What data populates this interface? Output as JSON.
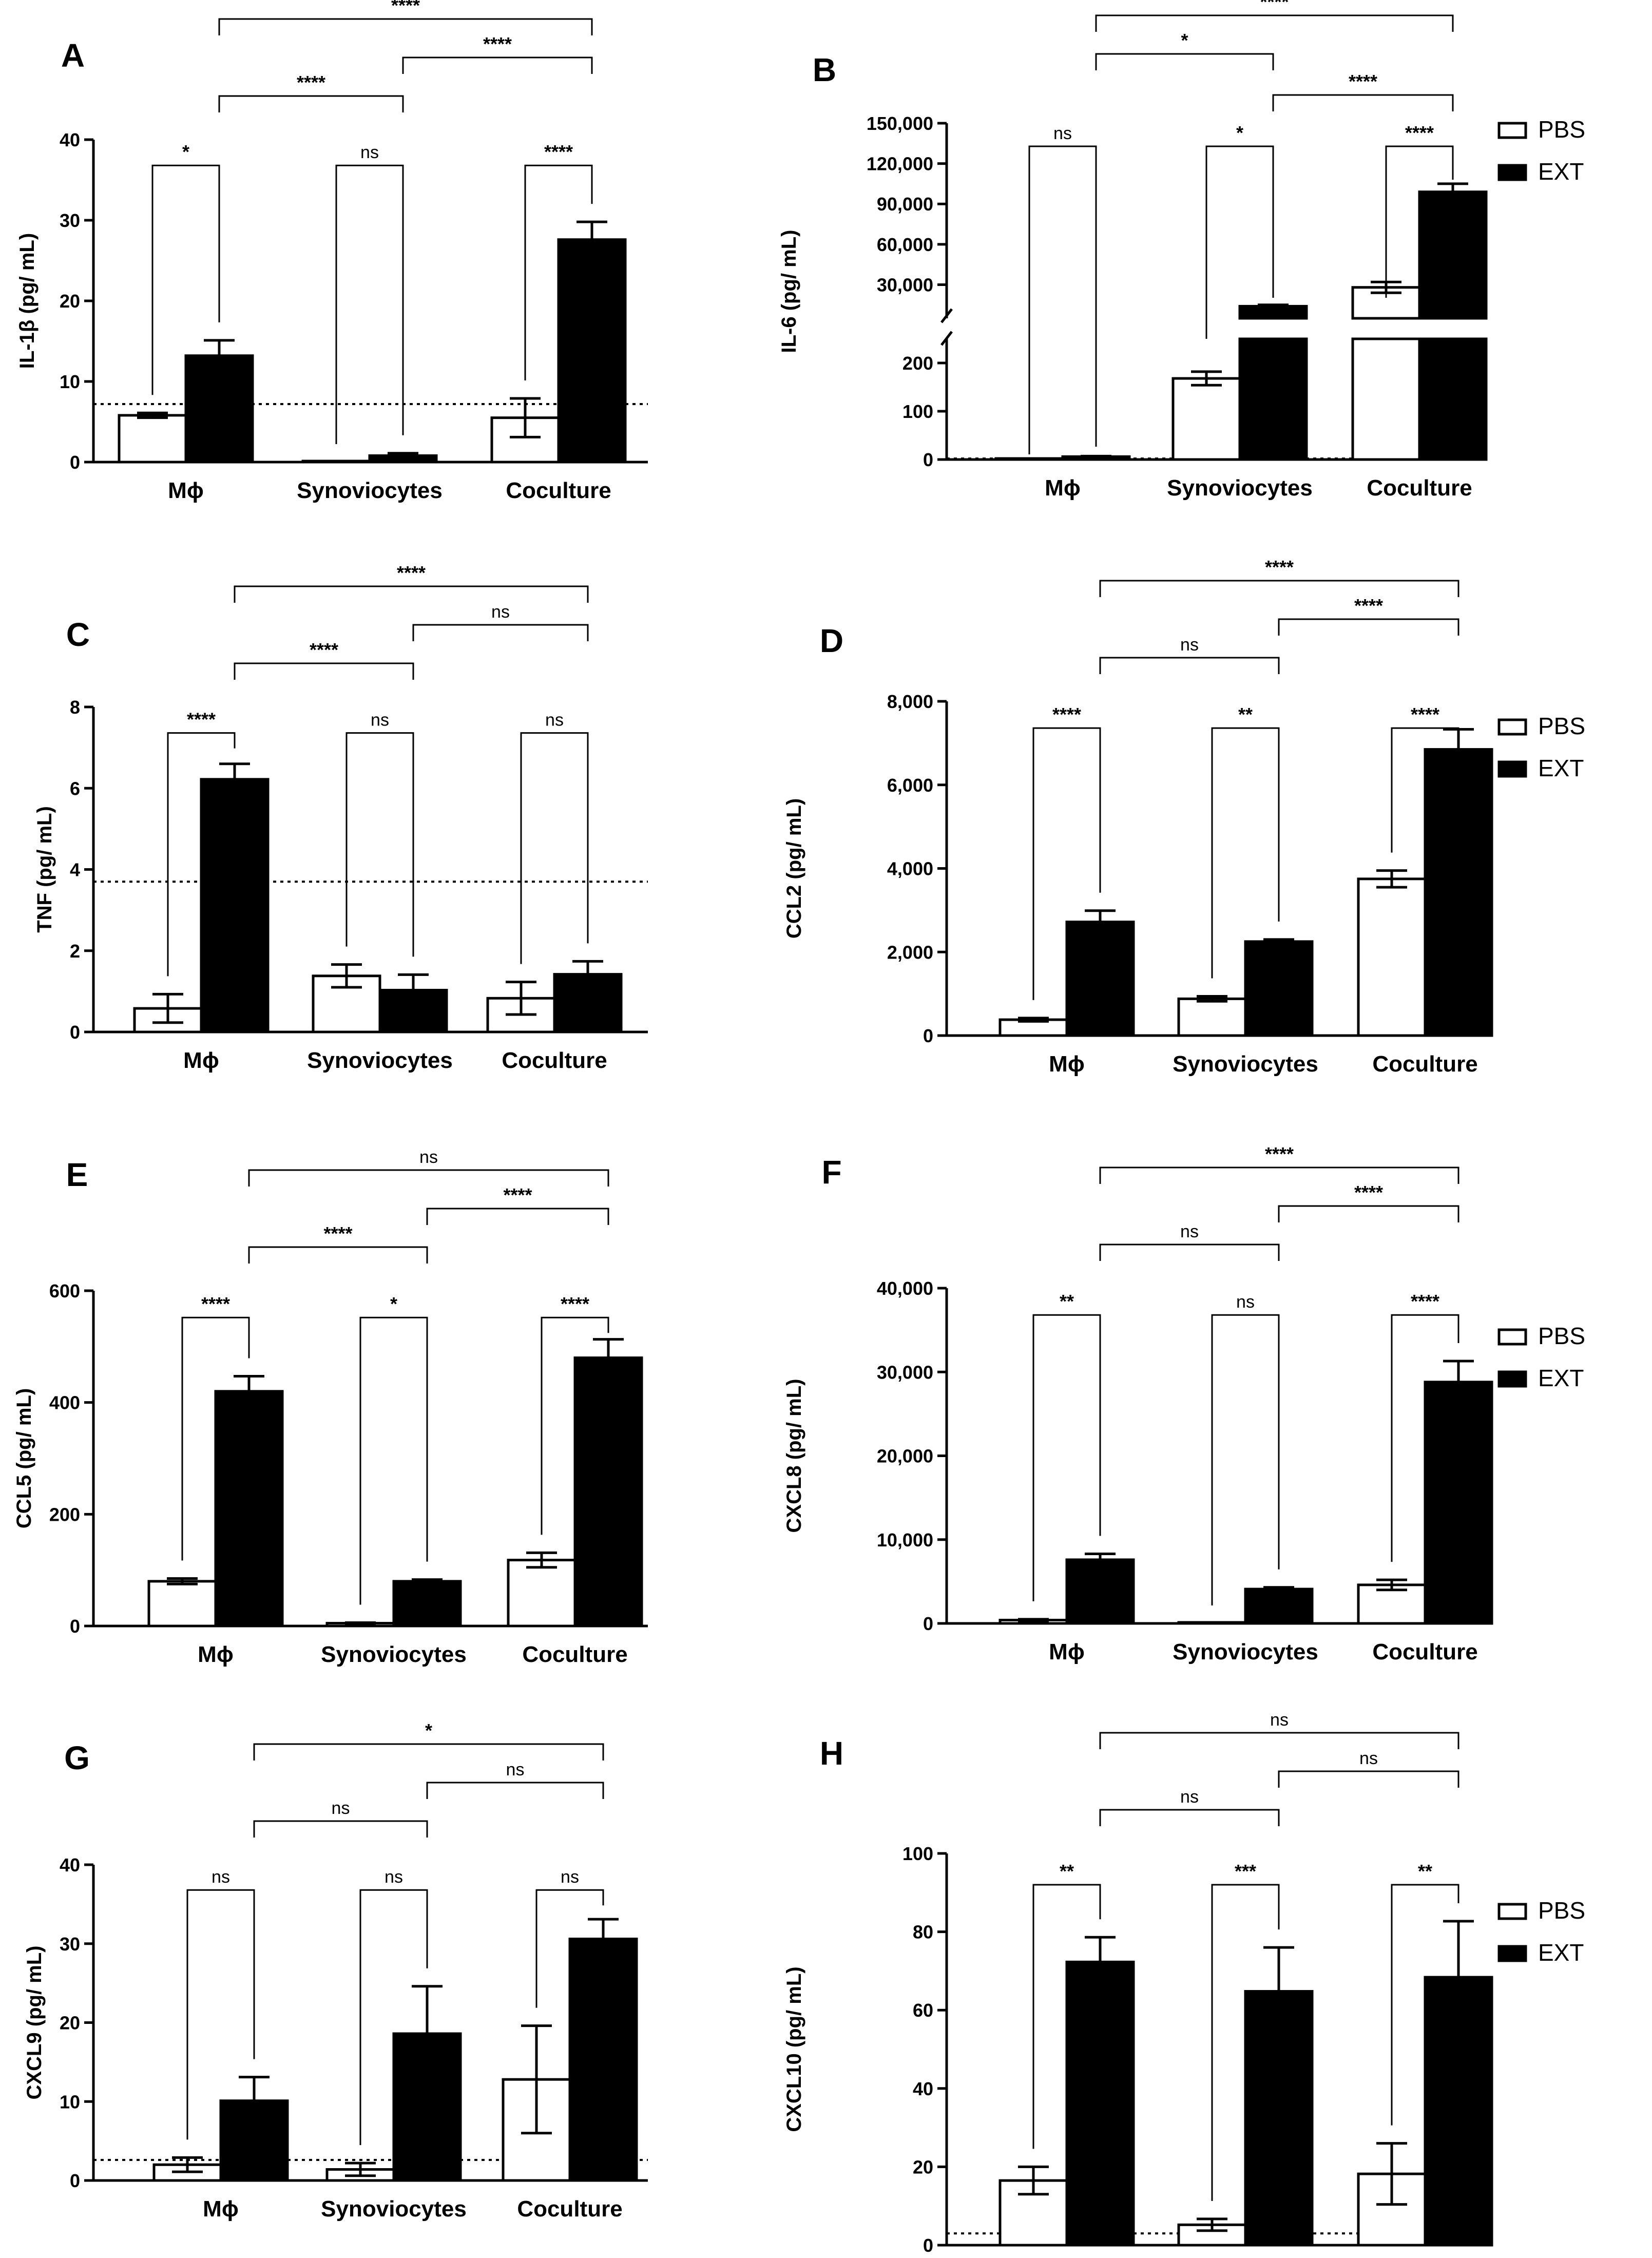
{
  "legend": {
    "items": [
      {
        "label": "PBS",
        "color": "#ffffff"
      },
      {
        "label": "EXT",
        "color": "#000000"
      }
    ]
  },
  "chart_data": [
    {
      "panel": "A",
      "type": "bar",
      "ylabel": "IL-1β (pg/ mL)",
      "categories": [
        "Mϕ",
        "Synoviocytes",
        "Coculture"
      ],
      "ylim": [
        0,
        40
      ],
      "yticks": [
        0,
        10,
        20,
        30,
        40
      ],
      "ytick_labels": [
        "0",
        "10",
        "20",
        "30",
        "40"
      ],
      "series": [
        {
          "name": "PBS",
          "values": [
            5.8,
            0,
            5.5
          ],
          "errors": [
            0.3,
            0,
            2.4
          ]
        },
        {
          "name": "EXT",
          "values": [
            13.2,
            0.8,
            27.6
          ],
          "errors": [
            1.9,
            0.3,
            2.2
          ]
        }
      ],
      "detection_limit": 7.2,
      "brackets_within": [
        "*",
        "ns",
        "****"
      ],
      "brackets_between": [
        {
          "from": 0,
          "to": 1,
          "label": "****"
        },
        {
          "from": 1,
          "to": 2,
          "label": "****"
        },
        {
          "from": 0,
          "to": 2,
          "label": "****"
        }
      ]
    },
    {
      "panel": "B",
      "type": "bar",
      "ylabel": "IL-6 (pg/ mL)",
      "categories": [
        "Mϕ",
        "Synoviocytes",
        "Coculture"
      ],
      "broken_axis": true,
      "lower_ylim": [
        0,
        250
      ],
      "lower_yticks": [
        0,
        100,
        200
      ],
      "lower_ytick_labels": [
        "0",
        "100",
        "200"
      ],
      "upper_ylim": [
        5000,
        150000
      ],
      "upper_yticks": [
        30000,
        60000,
        90000,
        120000,
        150000
      ],
      "upper_ytick_labels": [
        "30,000",
        "60,000",
        "90,000",
        "120,000",
        "150,000"
      ],
      "series": [
        {
          "name": "PBS",
          "values": [
            2,
            168,
            28000
          ],
          "errors": [
            0,
            14,
            4000
          ]
        },
        {
          "name": "EXT",
          "values": [
            6,
            14000,
            99000
          ],
          "errors": [
            1,
            1000,
            6000
          ]
        }
      ],
      "detection_limit": 2,
      "brackets_within": [
        "ns",
        "*",
        "****"
      ],
      "brackets_between": [
        {
          "from": 0,
          "to": 1,
          "label": "*"
        },
        {
          "from": 1,
          "to": 2,
          "label": "****"
        },
        {
          "from": 0,
          "to": 2,
          "label": "****"
        }
      ]
    },
    {
      "panel": "C",
      "type": "bar",
      "ylabel": "TNF (pg/ mL)",
      "categories": [
        "Mϕ",
        "Synoviocytes",
        "Coculture"
      ],
      "ylim": [
        0,
        8
      ],
      "yticks": [
        0,
        2,
        4,
        6,
        8
      ],
      "ytick_labels": [
        "0",
        "2",
        "4",
        "6",
        "8"
      ],
      "series": [
        {
          "name": "PBS",
          "values": [
            0.58,
            1.38,
            0.83
          ],
          "errors": [
            0.35,
            0.28,
            0.4
          ]
        },
        {
          "name": "EXT",
          "values": [
            6.22,
            1.03,
            1.42
          ],
          "errors": [
            0.38,
            0.38,
            0.32
          ]
        }
      ],
      "detection_limit": 3.7,
      "brackets_within": [
        "****",
        "ns",
        "ns"
      ],
      "brackets_between": [
        {
          "from": 0,
          "to": 1,
          "label": "****"
        },
        {
          "from": 1,
          "to": 2,
          "label": "ns"
        },
        {
          "from": 0,
          "to": 2,
          "label": "****"
        }
      ]
    },
    {
      "panel": "D",
      "type": "bar",
      "ylabel": "CCL2 (pg/ mL)",
      "categories": [
        "Mϕ",
        "Synoviocytes",
        "Coculture"
      ],
      "ylim": [
        0,
        8000
      ],
      "yticks": [
        0,
        2000,
        4000,
        6000,
        8000
      ],
      "ytick_labels": [
        "0",
        "2,000",
        "4,000",
        "6,000",
        "8,000"
      ],
      "series": [
        {
          "name": "PBS",
          "values": [
            380,
            880,
            3750
          ],
          "errors": [
            40,
            60,
            200
          ]
        },
        {
          "name": "EXT",
          "values": [
            2720,
            2250,
            6850
          ],
          "errors": [
            270,
            50,
            480
          ]
        }
      ],
      "brackets_within": [
        "****",
        "**",
        "****"
      ],
      "brackets_between": [
        {
          "from": 0,
          "to": 1,
          "label": "ns"
        },
        {
          "from": 1,
          "to": 2,
          "label": "****"
        },
        {
          "from": 0,
          "to": 2,
          "label": "****"
        }
      ]
    },
    {
      "panel": "E",
      "type": "bar",
      "ylabel": "CCL5 (pg/ mL)",
      "categories": [
        "Mϕ",
        "Synoviocytes",
        "Coculture"
      ],
      "ylim": [
        0,
        600
      ],
      "yticks": [
        0,
        200,
        400,
        600
      ],
      "ytick_labels": [
        "0",
        "200",
        "400",
        "600"
      ],
      "series": [
        {
          "name": "PBS",
          "values": [
            80,
            5,
            118
          ],
          "errors": [
            5,
            1,
            13
          ]
        },
        {
          "name": "EXT",
          "values": [
            420,
            80,
            480
          ],
          "errors": [
            27,
            3,
            33
          ]
        }
      ],
      "brackets_within": [
        "****",
        "*",
        "****"
      ],
      "brackets_between": [
        {
          "from": 0,
          "to": 1,
          "label": "****"
        },
        {
          "from": 1,
          "to": 2,
          "label": "****"
        },
        {
          "from": 0,
          "to": 2,
          "label": "ns"
        }
      ]
    },
    {
      "panel": "F",
      "type": "bar",
      "ylabel": "CXCL8 (pg/ mL)",
      "categories": [
        "Mϕ",
        "Synoviocytes",
        "Coculture"
      ],
      "ylim": [
        0,
        40000
      ],
      "yticks": [
        0,
        10000,
        20000,
        30000,
        40000
      ],
      "ytick_labels": [
        "0",
        "10,000",
        "20,000",
        "30,000",
        "40,000"
      ],
      "series": [
        {
          "name": "PBS",
          "values": [
            400,
            0,
            4600
          ],
          "errors": [
            100,
            0,
            600
          ]
        },
        {
          "name": "EXT",
          "values": [
            7600,
            4100,
            28800
          ],
          "errors": [
            700,
            200,
            2500
          ]
        }
      ],
      "brackets_within": [
        "**",
        "ns",
        "****"
      ],
      "brackets_between": [
        {
          "from": 0,
          "to": 1,
          "label": "ns"
        },
        {
          "from": 1,
          "to": 2,
          "label": "****"
        },
        {
          "from": 0,
          "to": 2,
          "label": "****"
        }
      ]
    },
    {
      "panel": "G",
      "type": "bar",
      "ylabel": "CXCL9 (pg/ mL)",
      "categories": [
        "Mϕ",
        "Synoviocytes",
        "Coculture"
      ],
      "ylim": [
        0,
        40
      ],
      "yticks": [
        0,
        10,
        20,
        30,
        40
      ],
      "ytick_labels": [
        "0",
        "10",
        "20",
        "30",
        "40"
      ],
      "series": [
        {
          "name": "PBS",
          "values": [
            2.0,
            1.4,
            12.8
          ],
          "errors": [
            0.9,
            0.8,
            6.8
          ]
        },
        {
          "name": "EXT",
          "values": [
            10.1,
            18.6,
            30.6
          ],
          "errors": [
            3.0,
            6.0,
            2.5
          ]
        }
      ],
      "detection_limit": 2.6,
      "brackets_within": [
        "ns",
        "ns",
        "ns"
      ],
      "brackets_between": [
        {
          "from": 0,
          "to": 1,
          "label": "ns"
        },
        {
          "from": 1,
          "to": 2,
          "label": "ns"
        },
        {
          "from": 0,
          "to": 2,
          "label": "*"
        }
      ]
    },
    {
      "panel": "H",
      "type": "bar",
      "ylabel": "CXCL10 (pg/ mL)",
      "categories": [
        "Mϕ",
        "Synoviocytes",
        "Coculture"
      ],
      "ylim": [
        0,
        100
      ],
      "yticks": [
        0,
        20,
        40,
        60,
        80,
        100
      ],
      "ytick_labels": [
        "0",
        "20",
        "40",
        "60",
        "80",
        "100"
      ],
      "series": [
        {
          "name": "PBS",
          "values": [
            16.5,
            5.2,
            18.2
          ],
          "errors": [
            3.5,
            1.5,
            7.8
          ]
        },
        {
          "name": "EXT",
          "values": [
            72.3,
            64.8,
            68.4
          ],
          "errors": [
            6.3,
            11.2,
            14.3
          ]
        }
      ],
      "detection_limit": 3,
      "brackets_within": [
        "**",
        "***",
        "**"
      ],
      "brackets_between": [
        {
          "from": 0,
          "to": 1,
          "label": "ns"
        },
        {
          "from": 1,
          "to": 2,
          "label": "ns"
        },
        {
          "from": 0,
          "to": 2,
          "label": "ns"
        }
      ]
    }
  ]
}
